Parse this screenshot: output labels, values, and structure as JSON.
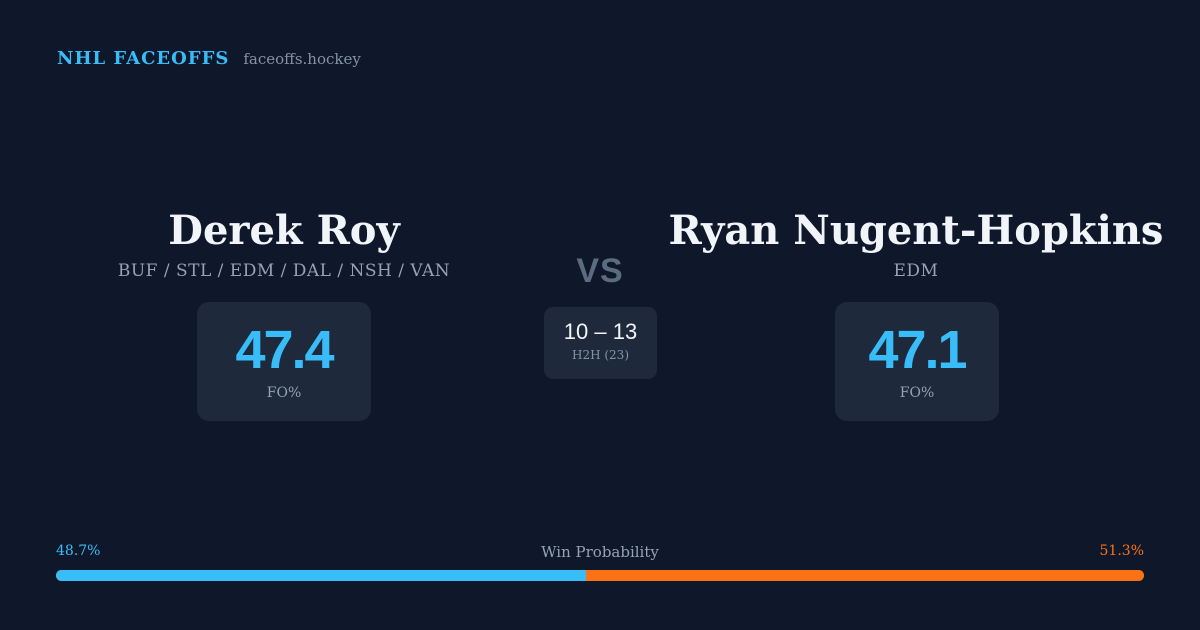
{
  "header": {
    "brand": "NHL FACEOFFS",
    "site": "faceoffs.hockey"
  },
  "player_left": {
    "name": "Derek Roy",
    "teams": "BUF / STL / EDM / DAL / NSH / VAN",
    "stat_value": "47.4",
    "stat_label": "FO%"
  },
  "player_right": {
    "name": "Ryan Nugent-Hopkins",
    "teams": "EDM",
    "stat_value": "47.1",
    "stat_label": "FO%"
  },
  "versus": {
    "label": "VS",
    "h2h_score": "10 – 13",
    "h2h_label": "H2H (23)"
  },
  "win_probability": {
    "title": "Win Probability",
    "left_label": "48.7%",
    "right_label": "51.3%",
    "left_fraction": 0.487,
    "right_fraction": 0.513
  },
  "colors": {
    "background": "#0f172a",
    "card": "#1e293b",
    "accent_left": "#38bdf8",
    "accent_right": "#f97316"
  }
}
